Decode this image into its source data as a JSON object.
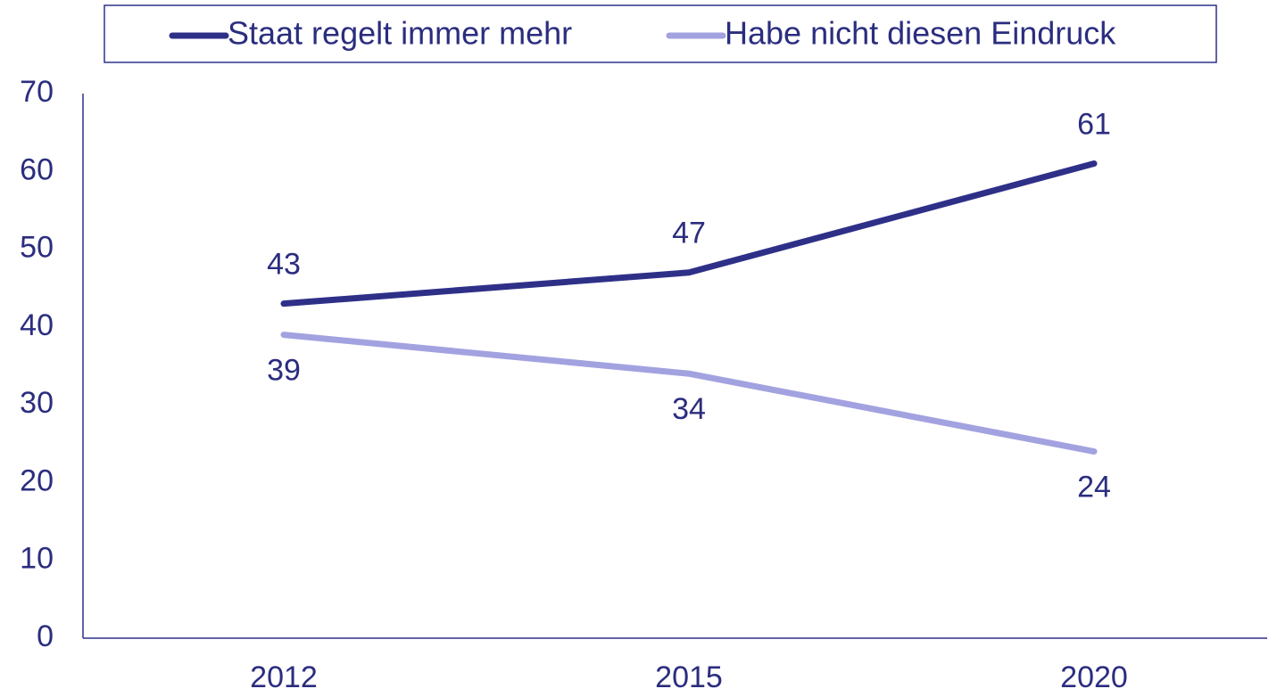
{
  "chart_data": {
    "type": "line",
    "categories": [
      "2012",
      "2015",
      "2020"
    ],
    "series": [
      {
        "name": "Staat regelt immer mehr",
        "color": "#2e3088",
        "values": [
          43,
          47,
          61
        ]
      },
      {
        "name": "Habe nicht diesen Eindruck",
        "color": "#a3a2e0",
        "values": [
          39,
          34,
          24
        ]
      }
    ],
    "ylim": [
      0,
      70
    ],
    "yticks": [
      0,
      10,
      20,
      30,
      40,
      50,
      60,
      70
    ],
    "grid": false,
    "legend": "top"
  }
}
